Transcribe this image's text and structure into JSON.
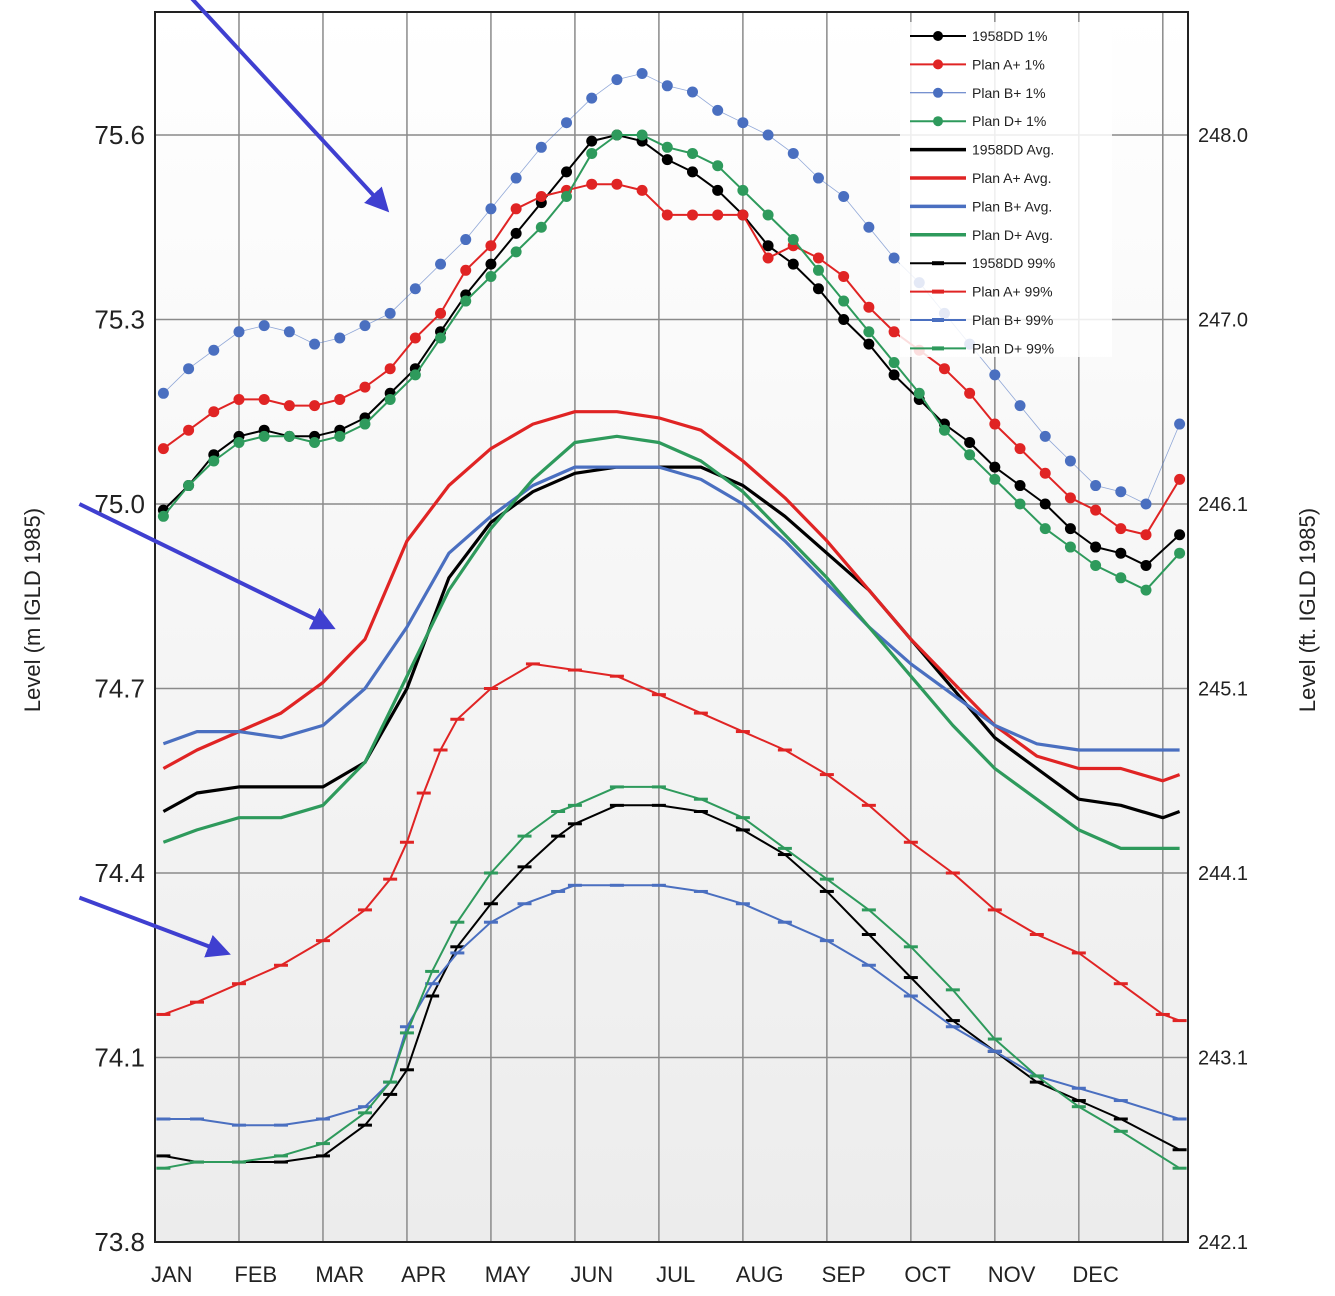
{
  "chart_data": {
    "type": "line",
    "ylabel": "Level (m IGLD 1985)",
    "ylabel_right": "Level (ft. IGLD 1985)",
    "categories": [
      "JAN",
      "FEB",
      "MAR",
      "APR",
      "MAY",
      "JUN",
      "JUL",
      "AUG",
      "SEP",
      "OCT",
      "NOV",
      "DEC"
    ],
    "x_unit": "month",
    "xlim": [
      0.0,
      12.3
    ],
    "ylim": [
      73.8,
      75.8
    ],
    "y_ticks": [
      "73.8",
      "74.1",
      "74.4",
      "74.7",
      "75.0",
      "75.3",
      "75.6"
    ],
    "y_ticks_right": [
      {
        "label": "242.1",
        "value": 73.8
      },
      {
        "label": "243.1",
        "value": 74.1
      },
      {
        "label": "244.1",
        "value": 74.4
      },
      {
        "label": "245.1",
        "value": 74.7
      },
      {
        "label": "246.1",
        "value": 75.0
      },
      {
        "label": "247.0",
        "value": 75.3
      },
      {
        "label": "248.0",
        "value": 75.6
      }
    ],
    "grid": true,
    "legend_position": "top-right",
    "series": [
      {
        "name": "1958DD 1%",
        "color": "#000000",
        "style": "dot-line",
        "x": [
          0.1,
          0.4,
          0.7,
          1.0,
          1.3,
          1.6,
          1.9,
          2.2,
          2.5,
          2.8,
          3.1,
          3.4,
          3.7,
          4.0,
          4.3,
          4.6,
          4.9,
          5.2,
          5.5,
          5.8,
          6.1,
          6.4,
          6.7,
          7.0,
          7.3,
          7.6,
          7.9,
          8.2,
          8.5,
          8.8,
          9.1,
          9.4,
          9.7,
          10.0,
          10.3,
          10.6,
          10.9,
          11.2,
          11.5,
          11.8,
          12.2
        ],
        "y": [
          74.99,
          75.03,
          75.08,
          75.11,
          75.12,
          75.11,
          75.11,
          75.12,
          75.14,
          75.18,
          75.22,
          75.28,
          75.34,
          75.39,
          75.44,
          75.49,
          75.54,
          75.59,
          75.6,
          75.59,
          75.56,
          75.54,
          75.51,
          75.47,
          75.42,
          75.39,
          75.35,
          75.3,
          75.26,
          75.21,
          75.17,
          75.13,
          75.1,
          75.06,
          75.03,
          75.0,
          74.96,
          74.93,
          74.92,
          74.9,
          74.95
        ]
      },
      {
        "name": "Plan A+ 1%",
        "color": "#e02424",
        "style": "dot-line",
        "x": [
          0.1,
          0.4,
          0.7,
          1.0,
          1.3,
          1.6,
          1.9,
          2.2,
          2.5,
          2.8,
          3.1,
          3.4,
          3.7,
          4.0,
          4.3,
          4.6,
          4.9,
          5.2,
          5.5,
          5.8,
          6.1,
          6.4,
          6.7,
          7.0,
          7.3,
          7.6,
          7.9,
          8.2,
          8.5,
          8.8,
          9.1,
          9.4,
          9.7,
          10.0,
          10.3,
          10.6,
          10.9,
          11.2,
          11.5,
          11.8,
          12.2
        ],
        "y": [
          75.09,
          75.12,
          75.15,
          75.17,
          75.17,
          75.16,
          75.16,
          75.17,
          75.19,
          75.22,
          75.27,
          75.31,
          75.38,
          75.42,
          75.48,
          75.5,
          75.51,
          75.52,
          75.52,
          75.51,
          75.47,
          75.47,
          75.47,
          75.47,
          75.4,
          75.42,
          75.4,
          75.37,
          75.32,
          75.28,
          75.25,
          75.22,
          75.18,
          75.13,
          75.09,
          75.05,
          75.01,
          74.99,
          74.96,
          74.95,
          75.04
        ]
      },
      {
        "name": "Plan B+ 1%",
        "color": "#4a6fc0",
        "style": "dots",
        "x": [
          0.1,
          0.4,
          0.7,
          1.0,
          1.3,
          1.6,
          1.9,
          2.2,
          2.5,
          2.8,
          3.1,
          3.4,
          3.7,
          4.0,
          4.3,
          4.6,
          4.9,
          5.2,
          5.5,
          5.8,
          6.1,
          6.4,
          6.7,
          7.0,
          7.3,
          7.6,
          7.9,
          8.2,
          8.5,
          8.8,
          9.1,
          9.4,
          9.7,
          10.0,
          10.3,
          10.6,
          10.9,
          11.2,
          11.5,
          11.8,
          12.2
        ],
        "y": [
          75.18,
          75.22,
          75.25,
          75.28,
          75.29,
          75.28,
          75.26,
          75.27,
          75.29,
          75.31,
          75.35,
          75.39,
          75.43,
          75.48,
          75.53,
          75.58,
          75.62,
          75.66,
          75.69,
          75.7,
          75.68,
          75.67,
          75.64,
          75.62,
          75.6,
          75.57,
          75.53,
          75.5,
          75.45,
          75.4,
          75.36,
          75.31,
          75.26,
          75.21,
          75.16,
          75.11,
          75.07,
          75.03,
          75.02,
          75.0,
          75.13
        ]
      },
      {
        "name": "Plan D+ 1%",
        "color": "#2e9a5c",
        "style": "dot-line",
        "x": [
          0.1,
          0.4,
          0.7,
          1.0,
          1.3,
          1.6,
          1.9,
          2.2,
          2.5,
          2.8,
          3.1,
          3.4,
          3.7,
          4.0,
          4.3,
          4.6,
          4.9,
          5.2,
          5.5,
          5.8,
          6.1,
          6.4,
          6.7,
          7.0,
          7.3,
          7.6,
          7.9,
          8.2,
          8.5,
          8.8,
          9.1,
          9.4,
          9.7,
          10.0,
          10.3,
          10.6,
          10.9,
          11.2,
          11.5,
          11.8,
          12.2
        ],
        "y": [
          74.98,
          75.03,
          75.07,
          75.1,
          75.11,
          75.11,
          75.1,
          75.11,
          75.13,
          75.17,
          75.21,
          75.27,
          75.33,
          75.37,
          75.41,
          75.45,
          75.5,
          75.57,
          75.6,
          75.6,
          75.58,
          75.57,
          75.55,
          75.51,
          75.47,
          75.43,
          75.38,
          75.33,
          75.28,
          75.23,
          75.18,
          75.12,
          75.08,
          75.04,
          75.0,
          74.96,
          74.93,
          74.9,
          74.88,
          74.86,
          74.92
        ]
      },
      {
        "name": "1958DD Avg.",
        "color": "#000000",
        "style": "line",
        "x": [
          0.1,
          0.5,
          1.0,
          1.5,
          2.0,
          2.5,
          3.0,
          3.5,
          4.0,
          4.5,
          5.0,
          5.5,
          6.0,
          6.5,
          7.0,
          7.5,
          8.0,
          8.5,
          9.0,
          9.5,
          10.0,
          10.5,
          11.0,
          11.5,
          12.0,
          12.2
        ],
        "y": [
          74.5,
          74.53,
          74.54,
          74.54,
          74.54,
          74.58,
          74.7,
          74.88,
          74.97,
          75.02,
          75.05,
          75.06,
          75.06,
          75.06,
          75.03,
          74.98,
          74.92,
          74.86,
          74.78,
          74.7,
          74.62,
          74.57,
          74.52,
          74.51,
          74.49,
          74.5
        ]
      },
      {
        "name": "Plan A+ Avg.",
        "color": "#e02424",
        "style": "line",
        "x": [
          0.1,
          0.5,
          1.0,
          1.5,
          2.0,
          2.5,
          3.0,
          3.5,
          4.0,
          4.5,
          5.0,
          5.5,
          6.0,
          6.5,
          7.0,
          7.5,
          8.0,
          8.5,
          9.0,
          9.5,
          10.0,
          10.5,
          11.0,
          11.5,
          12.0,
          12.2
        ],
        "y": [
          74.57,
          74.6,
          74.63,
          74.66,
          74.71,
          74.78,
          74.94,
          75.03,
          75.09,
          75.13,
          75.15,
          75.15,
          75.14,
          75.12,
          75.07,
          75.01,
          74.94,
          74.86,
          74.78,
          74.71,
          74.64,
          74.59,
          74.57,
          74.57,
          74.55,
          74.56
        ]
      },
      {
        "name": "Plan B+ Avg.",
        "color": "#4a6fc0",
        "style": "line",
        "x": [
          0.1,
          0.5,
          1.0,
          1.5,
          2.0,
          2.5,
          3.0,
          3.5,
          4.0,
          4.5,
          5.0,
          5.5,
          6.0,
          6.5,
          7.0,
          7.5,
          8.0,
          8.5,
          9.0,
          9.5,
          10.0,
          10.5,
          11.0,
          11.5,
          12.0,
          12.2
        ],
        "y": [
          74.61,
          74.63,
          74.63,
          74.62,
          74.64,
          74.7,
          74.8,
          74.92,
          74.98,
          75.03,
          75.06,
          75.06,
          75.06,
          75.04,
          75.0,
          74.94,
          74.87,
          74.8,
          74.74,
          74.69,
          74.64,
          74.61,
          74.6,
          74.6,
          74.6,
          74.6
        ]
      },
      {
        "name": "Plan D+ Avg.",
        "color": "#2e9a5c",
        "style": "line",
        "x": [
          0.1,
          0.5,
          1.0,
          1.5,
          2.0,
          2.5,
          3.0,
          3.5,
          4.0,
          4.5,
          5.0,
          5.5,
          6.0,
          6.5,
          7.0,
          7.5,
          8.0,
          8.5,
          9.0,
          9.5,
          10.0,
          10.5,
          11.0,
          11.5,
          12.0,
          12.2
        ],
        "y": [
          74.45,
          74.47,
          74.49,
          74.49,
          74.51,
          74.58,
          74.72,
          74.86,
          74.96,
          75.04,
          75.1,
          75.11,
          75.1,
          75.07,
          75.02,
          74.95,
          74.88,
          74.8,
          74.72,
          74.64,
          74.57,
          74.52,
          74.47,
          74.44,
          74.44,
          74.44
        ]
      },
      {
        "name": "1958DD 99%",
        "color": "#000000",
        "style": "dash-line",
        "x": [
          0.1,
          0.5,
          1.0,
          1.5,
          2.0,
          2.5,
          2.8,
          3.0,
          3.3,
          3.6,
          4.0,
          4.4,
          4.8,
          5.0,
          5.5,
          6.0,
          6.5,
          7.0,
          7.5,
          8.0,
          8.5,
          9.0,
          9.5,
          10.0,
          10.5,
          11.0,
          11.5,
          12.2
        ],
        "y": [
          73.94,
          73.93,
          73.93,
          73.93,
          73.94,
          73.99,
          74.04,
          74.08,
          74.2,
          74.28,
          74.35,
          74.41,
          74.46,
          74.48,
          74.51,
          74.51,
          74.5,
          74.47,
          74.43,
          74.37,
          74.3,
          74.23,
          74.16,
          74.11,
          74.06,
          74.03,
          74.0,
          73.95
        ]
      },
      {
        "name": "Plan A+ 99%",
        "color": "#e02424",
        "style": "dash-line",
        "x": [
          0.1,
          0.5,
          1.0,
          1.5,
          2.0,
          2.5,
          2.8,
          3.0,
          3.2,
          3.4,
          3.6,
          4.0,
          4.5,
          5.0,
          5.5,
          6.0,
          6.5,
          7.0,
          7.5,
          8.0,
          8.5,
          9.0,
          9.5,
          10.0,
          10.5,
          11.0,
          11.5,
          12.0,
          12.2
        ],
        "y": [
          74.17,
          74.19,
          74.22,
          74.25,
          74.29,
          74.34,
          74.39,
          74.45,
          74.53,
          74.6,
          74.65,
          74.7,
          74.74,
          74.73,
          74.72,
          74.69,
          74.66,
          74.63,
          74.6,
          74.56,
          74.51,
          74.45,
          74.4,
          74.34,
          74.3,
          74.27,
          74.22,
          74.17,
          74.16
        ]
      },
      {
        "name": "Plan B+ 99%",
        "color": "#4a6fc0",
        "style": "dash-line",
        "x": [
          0.1,
          0.5,
          1.0,
          1.5,
          2.0,
          2.5,
          2.8,
          3.0,
          3.3,
          3.6,
          4.0,
          4.4,
          4.8,
          5.0,
          5.5,
          6.0,
          6.5,
          7.0,
          7.5,
          8.0,
          8.5,
          9.0,
          9.5,
          10.0,
          10.5,
          11.0,
          11.5,
          12.2
        ],
        "y": [
          74.0,
          74.0,
          73.99,
          73.99,
          74.0,
          74.02,
          74.06,
          74.15,
          74.22,
          74.27,
          74.32,
          74.35,
          74.37,
          74.38,
          74.38,
          74.38,
          74.37,
          74.35,
          74.32,
          74.29,
          74.25,
          74.2,
          74.15,
          74.11,
          74.07,
          74.05,
          74.03,
          74.0
        ]
      },
      {
        "name": "Plan D+ 99%",
        "color": "#2e9a5c",
        "style": "dash-line",
        "x": [
          0.1,
          0.5,
          1.0,
          1.5,
          2.0,
          2.5,
          2.8,
          3.0,
          3.3,
          3.6,
          4.0,
          4.4,
          4.8,
          5.0,
          5.5,
          6.0,
          6.5,
          7.0,
          7.5,
          8.0,
          8.5,
          9.0,
          9.5,
          10.0,
          10.5,
          11.0,
          11.5,
          12.2
        ],
        "y": [
          73.92,
          73.93,
          73.93,
          73.94,
          73.96,
          74.01,
          74.06,
          74.14,
          74.24,
          74.32,
          74.4,
          74.46,
          74.5,
          74.51,
          74.54,
          74.54,
          74.52,
          74.49,
          74.44,
          74.39,
          74.34,
          74.28,
          74.21,
          74.13,
          74.07,
          74.02,
          73.98,
          73.92
        ]
      }
    ]
  },
  "annotations": {
    "arrow_color": "#3f3fd0",
    "arrows": [
      {
        "from": [
          -0.9,
          76.02
        ],
        "to": [
          2.75,
          75.48
        ]
      },
      {
        "from": [
          -0.9,
          75.0
        ],
        "to": [
          2.1,
          74.8
        ]
      },
      {
        "from": [
          -0.9,
          74.36
        ],
        "to": [
          0.85,
          74.27
        ]
      }
    ]
  }
}
